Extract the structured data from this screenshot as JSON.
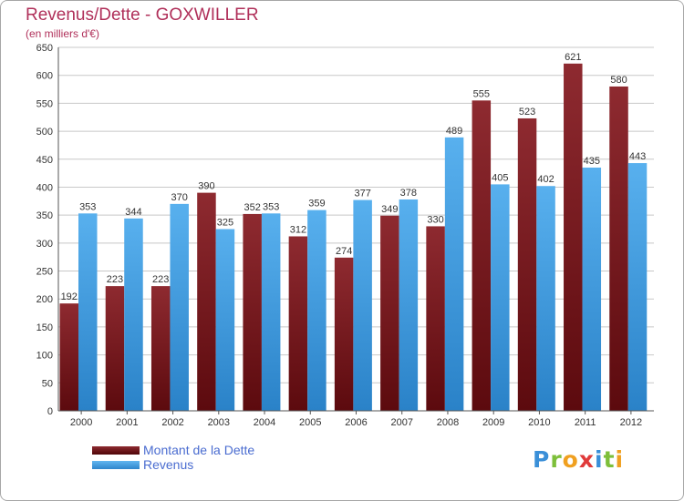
{
  "title": "Revenus/Dette - GOXWILLER",
  "subtitle": "(en milliers d'€)",
  "logo_text": "Proxiti",
  "colors": {
    "dette": "#7b1a1f",
    "revenus": "#3f9de0",
    "grid": "#c8c8c8",
    "axis_text": "#333333"
  },
  "chart_data": {
    "type": "bar",
    "title": "Revenus/Dette - GOXWILLER",
    "ylabel": "(en milliers d'€)",
    "categories": [
      "2000",
      "2001",
      "2002",
      "2003",
      "2004",
      "2005",
      "2006",
      "2007",
      "2008",
      "2009",
      "2010",
      "2011",
      "2012"
    ],
    "series": [
      {
        "name": "Montant de la Dette",
        "values": [
          192,
          223,
          223,
          390,
          352,
          312,
          274,
          349,
          330,
          555,
          523,
          621,
          580
        ]
      },
      {
        "name": "Revenus",
        "values": [
          353,
          344,
          370,
          325,
          353,
          359,
          377,
          378,
          489,
          405,
          402,
          435,
          443
        ]
      }
    ],
    "ylim": [
      0,
      650
    ],
    "yticks": [
      0,
      50,
      100,
      150,
      200,
      250,
      300,
      350,
      400,
      450,
      500,
      550,
      600,
      650
    ],
    "grid": true,
    "legend_position": "bottom-left"
  }
}
